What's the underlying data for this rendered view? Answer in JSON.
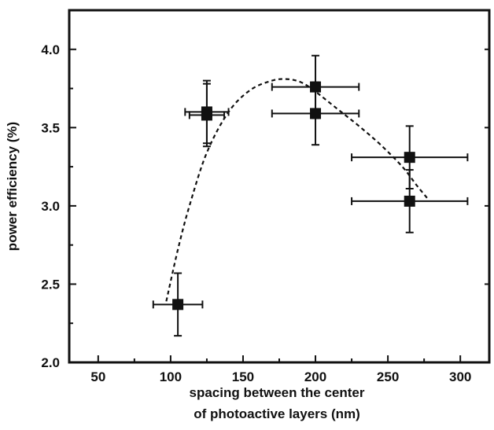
{
  "chart_data": {
    "type": "scatter",
    "xlabel": [
      "spacing between the center",
      "of photoactive layers (nm)"
    ],
    "ylabel": "power efficiency (%)",
    "xlim": [
      30,
      320
    ],
    "ylim": [
      2.0,
      4.25
    ],
    "x_ticks": [
      50,
      100,
      150,
      200,
      250,
      300
    ],
    "y_ticks": [
      2.0,
      2.5,
      3.0,
      3.5,
      4.0
    ],
    "x_tick_labels": [
      "50",
      "100",
      "150",
      "200",
      "250",
      "300"
    ],
    "y_tick_labels": [
      "2.0",
      "2.5",
      "3.0",
      "3.5",
      "4.0"
    ],
    "grid": false,
    "points": [
      {
        "x": 105,
        "y": 2.37,
        "x_err": 17,
        "y_err": 0.2
      },
      {
        "x": 125,
        "y": 3.6,
        "x_err": 15,
        "y_err": 0.2
      },
      {
        "x": 125,
        "y": 3.58,
        "x_err": 12,
        "y_err": 0.2
      },
      {
        "x": 200,
        "y": 3.76,
        "x_err": 30,
        "y_err": 0.2
      },
      {
        "x": 200,
        "y": 3.59,
        "x_err": 30,
        "y_err": 0.2
      },
      {
        "x": 265,
        "y": 3.31,
        "x_err": 40,
        "y_err": 0.2
      },
      {
        "x": 265,
        "y": 3.03,
        "x_err": 40,
        "y_err": 0.2
      }
    ],
    "fit_curve": {
      "style": "dashed",
      "x": [
        97,
        105,
        113,
        125,
        140,
        155,
        170,
        180,
        190,
        200,
        215,
        230,
        245,
        260,
        270,
        278
      ],
      "y": [
        2.39,
        2.72,
        3.0,
        3.34,
        3.6,
        3.74,
        3.8,
        3.81,
        3.79,
        3.73,
        3.62,
        3.51,
        3.39,
        3.25,
        3.13,
        3.04
      ]
    }
  }
}
